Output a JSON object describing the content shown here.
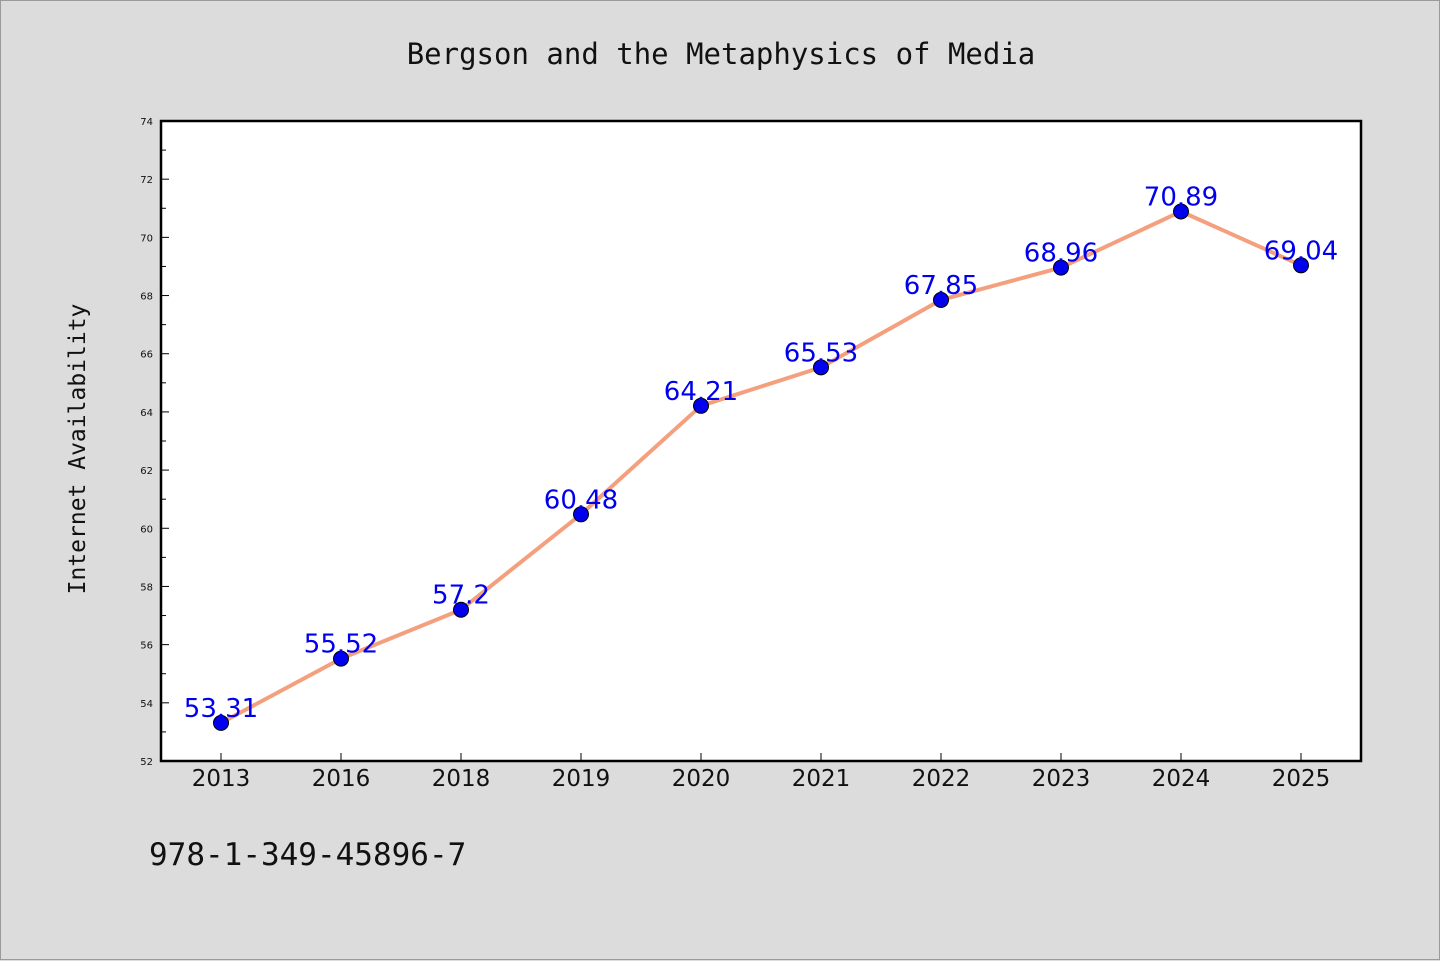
{
  "chart_data": {
    "type": "line",
    "title": "Bergson and the Metaphysics of Media",
    "xlabel": "",
    "ylabel": "Internet Availability",
    "categories": [
      "2013",
      "2016",
      "2018",
      "2019",
      "2020",
      "2021",
      "2022",
      "2023",
      "2024",
      "2025"
    ],
    "series": [
      {
        "values": [
          53.31,
          55.52,
          57.2,
          60.48,
          64.21,
          65.53,
          67.85,
          68.96,
          70.89,
          69.04
        ]
      }
    ],
    "data_labels": [
      "53.31",
      "55.52",
      "57.2",
      "60.48",
      "64.21",
      "65.53",
      "67.85",
      "68.96",
      "70.89",
      "69.04"
    ],
    "ylim": [
      52,
      74
    ],
    "yticks": [
      52,
      54,
      56,
      58,
      60,
      62,
      64,
      66,
      68,
      70,
      72,
      74
    ],
    "grid": false,
    "legend": "none",
    "line_color": "#f4a07e",
    "marker_color": "#0000ee",
    "label_color": "#0000ee",
    "footnote": "978-1-349-45896-7"
  }
}
